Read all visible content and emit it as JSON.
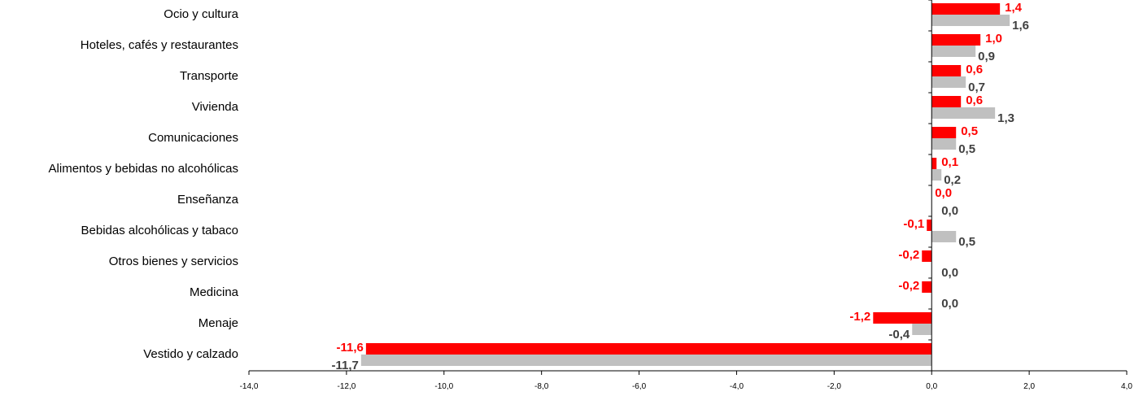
{
  "chart_data": {
    "type": "bar",
    "orientation": "horizontal",
    "categories": [
      "Ocio y cultura",
      "Hoteles, cafés y restaurantes",
      "Transporte",
      "Vivienda",
      "Comunicaciones",
      "Alimentos y bebidas no alcohólicas",
      "Enseñanza",
      "Bebidas alcohólicas y tabaco",
      "Otros bienes y servicios",
      "Medicina",
      "Menaje",
      "Vestido y calzado"
    ],
    "series": [
      {
        "color": "#ff0000",
        "label_color": "#ff0000",
        "values": [
          1.4,
          1.0,
          0.6,
          0.6,
          0.5,
          0.1,
          0.0,
          -0.1,
          -0.2,
          -0.2,
          -1.2,
          -11.6
        ],
        "labels": [
          "1,4",
          "1,0",
          "0,6",
          "0,6",
          "0,5",
          "0,1",
          "0,0",
          "-0,1",
          "-0,2",
          "-0,2",
          "-1,2",
          "-11,6"
        ]
      },
      {
        "color": "#c0c0c0",
        "label_color": "#404040",
        "values": [
          1.6,
          0.9,
          0.7,
          1.3,
          0.5,
          0.2,
          0.0,
          0.5,
          0.0,
          0.0,
          -0.4,
          -11.7
        ],
        "labels": [
          "1,6",
          "0,9",
          "0,7",
          "1,3",
          "0,5",
          "0,2",
          "0,0",
          "0,5",
          "0,0",
          "0,0",
          "-0,4",
          "-11,7"
        ]
      }
    ],
    "xlim": [
      -14.0,
      4.0
    ],
    "xticks": [
      -14.0,
      -12.0,
      -10.0,
      -8.0,
      -6.0,
      -4.0,
      -2.0,
      0.0,
      2.0,
      4.0
    ],
    "xtick_labels": [
      "-14,0",
      "-12,0",
      "-10,0",
      "-8,0",
      "-6,0",
      "-4,0",
      "-2,0",
      "0,0",
      "2,0",
      "4,0"
    ],
    "title": "",
    "xlabel": "",
    "ylabel": "",
    "grid": false,
    "legend": "none"
  }
}
